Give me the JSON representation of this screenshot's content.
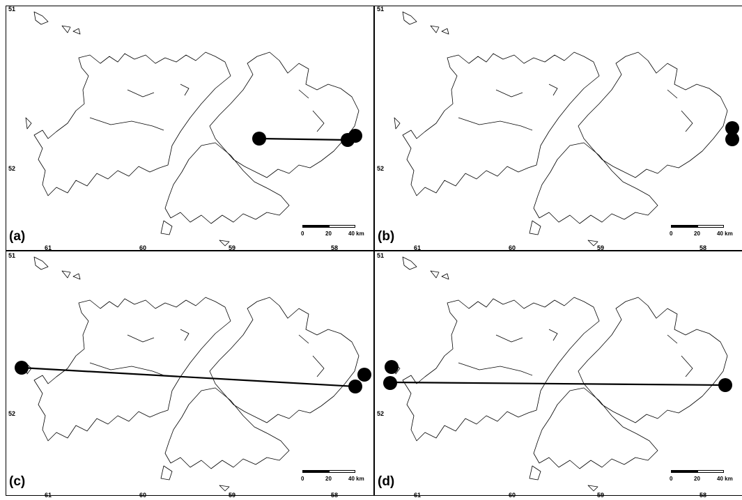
{
  "panels": [
    {
      "id": "a",
      "label": "(a)"
    },
    {
      "id": "b",
      "label": "(b)"
    },
    {
      "id": "c",
      "label": "(c)"
    },
    {
      "id": "d",
      "label": "(d)"
    }
  ],
  "latitude_labels": [
    "51",
    "52"
  ],
  "longitude_labels": [
    "61",
    "60",
    "59",
    "58"
  ],
  "scale_bar": {
    "ticks": [
      "0",
      "20",
      "40 km"
    ]
  },
  "colors": {
    "ink": "#000000",
    "background": "#ffffff"
  }
}
